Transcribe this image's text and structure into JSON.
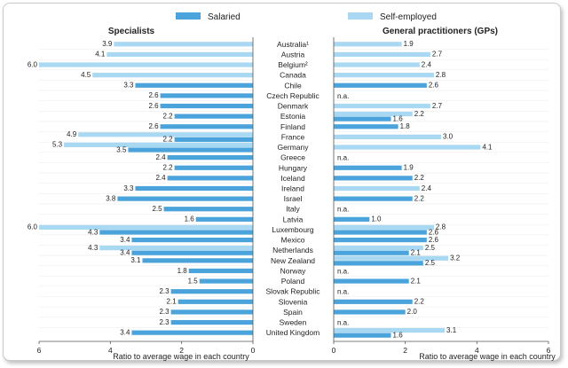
{
  "chart_data": {
    "type": "bar",
    "orientation": "horizontal",
    "legend": {
      "entries": [
        {
          "name": "Salaried",
          "color": "#4aa4db"
        },
        {
          "name": "Self-employed",
          "color": "#a9d8f2"
        }
      ],
      "placement": "top"
    },
    "categories": [
      "Australia¹",
      "Austria",
      "Belgium²",
      "Canada",
      "Chile",
      "Czech Republic",
      "Denmark",
      "Estonia",
      "Finland",
      "France",
      "Germany",
      "Greece",
      "Hungary",
      "Iceland",
      "Ireland",
      "Israel",
      "Italy",
      "Latvia",
      "Luxembourg",
      "Mexico",
      "Netherlands",
      "New Zealand",
      "Norway",
      "Poland",
      "Slovak Republic",
      "Slovenia",
      "Spain",
      "Sweden",
      "United Kingdom"
    ],
    "panels": [
      {
        "title": "Specialists",
        "xlabel": "Ratio to average wage in each country",
        "xlim": [
          0,
          6
        ],
        "xticks": [
          "0",
          "2",
          "4",
          "6"
        ],
        "reversed": true,
        "series": [
          {
            "name": "Salaried",
            "values": [
              null,
              null,
              null,
              null,
              3.3,
              2.6,
              2.6,
              2.2,
              2.6,
              2.2,
              3.5,
              2.4,
              2.2,
              2.4,
              3.3,
              3.8,
              2.5,
              1.6,
              4.3,
              3.4,
              3.4,
              3.1,
              1.8,
              1.5,
              2.3,
              2.1,
              2.3,
              2.3,
              3.4
            ]
          },
          {
            "name": "Self-employed",
            "values": [
              3.9,
              4.1,
              6.0,
              4.5,
              null,
              null,
              null,
              null,
              null,
              4.9,
              5.3,
              null,
              null,
              null,
              null,
              null,
              null,
              null,
              6.0,
              null,
              4.3,
              null,
              null,
              null,
              null,
              null,
              null,
              null,
              null
            ]
          }
        ]
      },
      {
        "title": "General practitioners (GPs)",
        "xlabel": "Ratio to average wage in each country",
        "xlim": [
          0,
          6
        ],
        "xticks": [
          "0",
          "2",
          "4",
          "6"
        ],
        "reversed": false,
        "na_label": "n.a.",
        "series": [
          {
            "name": "Salaried",
            "values": [
              null,
              null,
              null,
              null,
              2.6,
              null,
              null,
              1.6,
              1.8,
              null,
              null,
              null,
              1.9,
              2.2,
              null,
              2.2,
              null,
              1.0,
              2.6,
              2.6,
              2.1,
              2.5,
              null,
              2.1,
              null,
              2.2,
              2.0,
              null,
              1.6
            ]
          },
          {
            "name": "Self-employed",
            "values": [
              1.9,
              2.7,
              2.4,
              2.8,
              null,
              null,
              2.7,
              2.2,
              null,
              3.0,
              4.1,
              null,
              null,
              null,
              2.4,
              null,
              null,
              null,
              2.8,
              null,
              2.5,
              3.2,
              null,
              null,
              null,
              null,
              null,
              null,
              3.1
            ]
          }
        ],
        "not_available": [
          "Czech Republic",
          "Greece",
          "Italy",
          "Norway",
          "Slovak Republic",
          "Sweden"
        ]
      }
    ]
  }
}
